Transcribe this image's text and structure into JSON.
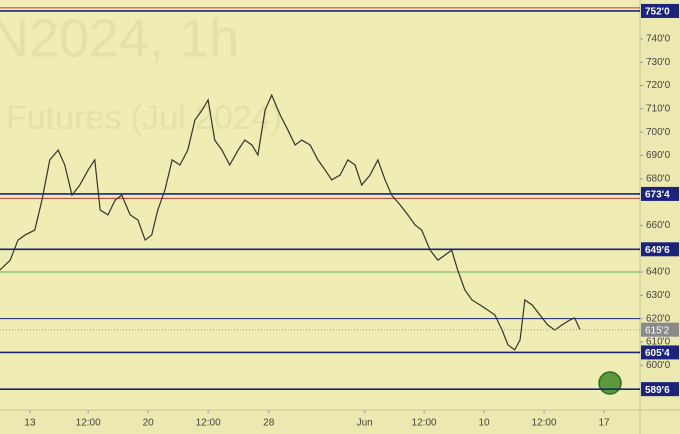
{
  "chart_data": {
    "type": "line",
    "watermark": [
      "N2024, 1h",
      "Futures (Jul 2024)"
    ],
    "x": [
      0,
      1.7,
      3,
      4.2,
      5.8,
      7,
      8.3,
      9.7,
      10.8,
      12,
      13.3,
      14.7,
      15.8,
      16.7,
      18,
      19.2,
      20.3,
      21.7,
      23,
      24.2,
      25.3,
      26.3,
      27.5,
      28.7,
      30,
      31.3,
      32.5,
      33.7,
      34.7,
      35.8,
      37,
      38.3,
      39.7,
      40.8,
      42,
      43,
      44.2,
      45.3,
      46.7,
      48,
      49.2,
      50.3,
      51.7,
      53,
      54.2,
      55.3,
      56.7,
      58,
      59.2,
      60.3,
      61.7,
      63,
      64.2,
      65.3,
      66.7,
      68,
      69.2,
      70.3,
      71.7,
      73,
      74.2,
      75.3,
      76.3,
      77.5,
      78.7,
      80,
      81.3,
      82.5,
      83.7,
      84.7,
      85.8,
      86.7,
      87.5,
      88.7,
      90,
      91.3,
      92.5,
      93.7,
      95,
      95.8,
      96.7
    ],
    "series": [
      {
        "color": "#333333",
        "values": [
          640.9,
          645.1,
          653.7,
          655.9,
          658.0,
          670.9,
          688.1,
          692.3,
          685.9,
          673.0,
          677.3,
          683.8,
          688.1,
          666.6,
          664.5,
          670.9,
          673.0,
          664.5,
          662.3,
          653.7,
          655.9,
          666.6,
          675.2,
          688.1,
          685.9,
          692.3,
          705.2,
          709.5,
          713.8,
          696.6,
          692.3,
          685.9,
          692.3,
          696.6,
          694.5,
          690.2,
          709.5,
          715.9,
          707.4,
          700.9,
          694.5,
          696.6,
          694.5,
          688.1,
          683.8,
          679.5,
          681.6,
          688.1,
          685.9,
          677.3,
          681.6,
          688.1,
          679.5,
          673.0,
          668.8,
          664.5,
          660.2,
          658.0,
          649.4,
          645.1,
          647.3,
          649.4,
          640.9,
          632.3,
          628.0,
          625.9,
          623.7,
          621.6,
          615.1,
          608.7,
          606.6,
          610.8,
          628.0,
          625.9,
          621.6,
          617.3,
          615.1,
          617.3,
          619.4,
          620.3,
          615.25
        ]
      }
    ],
    "xlim": [
      0,
      106.7
    ],
    "xticks": [
      {
        "value": 5,
        "label": "13"
      },
      {
        "value": 14.7,
        "label": "12:00"
      },
      {
        "value": 24.7,
        "label": "20"
      },
      {
        "value": 34.7,
        "label": "12:00"
      },
      {
        "value": 44.8,
        "label": "28"
      },
      {
        "value": 60.8,
        "label": "Jun"
      },
      {
        "value": 70.7,
        "label": "12:00"
      },
      {
        "value": 80.7,
        "label": "10"
      },
      {
        "value": 90.7,
        "label": "12:00"
      },
      {
        "value": 100.7,
        "label": "17"
      }
    ],
    "ylim": [
      580.8,
      756.7
    ],
    "yticks": [
      {
        "value": 740,
        "label": "740'0"
      },
      {
        "value": 730,
        "label": "730'0"
      },
      {
        "value": 720,
        "label": "720'0"
      },
      {
        "value": 710,
        "label": "710'0"
      },
      {
        "value": 700,
        "label": "700'0"
      },
      {
        "value": 690,
        "label": "690'0"
      },
      {
        "value": 680,
        "label": "680'0"
      },
      {
        "value": 660,
        "label": "660'0"
      },
      {
        "value": 640,
        "label": "640'0"
      },
      {
        "value": 630,
        "label": "630'0"
      },
      {
        "value": 620,
        "label": "620'0"
      },
      {
        "value": 610,
        "label": "610'0"
      },
      {
        "value": 600,
        "label": "600'0"
      }
    ],
    "levels": [
      {
        "value": 753.3,
        "color": "#c0392b"
      },
      {
        "value": 752,
        "label": "752'0",
        "color": "#1a237e"
      },
      {
        "value": 673.5,
        "label": "673'4",
        "color": "#1a237e"
      },
      {
        "value": 671.6,
        "color": "#c0392b"
      },
      {
        "value": 649.75,
        "label": "649'6",
        "color": "#1a237e"
      },
      {
        "value": 640,
        "color": "#5cb85c"
      },
      {
        "value": 620,
        "color": "#1a237e"
      },
      {
        "value": 605.5,
        "label": "605'4",
        "color": "#1a237e"
      },
      {
        "value": 589.75,
        "label": "589'6",
        "color": "#1a237e"
      }
    ],
    "last": {
      "value": 615.25,
      "label": "615'2"
    }
  }
}
